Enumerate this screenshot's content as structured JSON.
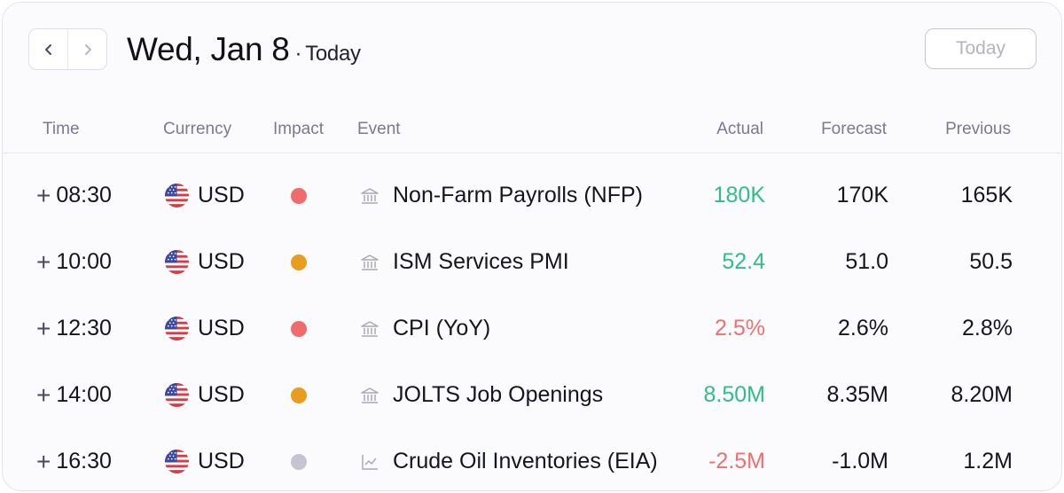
{
  "header": {
    "prev_icon": "chevron-left-icon",
    "next_icon": "chevron-right-icon",
    "date": "Wed, Jan 8",
    "separator": "·",
    "subtitle": "Today",
    "today_button": "Today"
  },
  "columns": {
    "time": "Time",
    "currency": "Currency",
    "impact": "Impact",
    "event": "Event",
    "actual": "Actual",
    "forecast": "Forecast",
    "previous": "Previous"
  },
  "colors": {
    "positive": "#2fbe85",
    "negative": "#ef7070",
    "impact_high": "#f06b6b",
    "impact_medium": "#e89d1e",
    "impact_low": "#c4c4d2"
  },
  "rows": [
    {
      "time": "08:30",
      "currency": "USD",
      "flag_icon": "us-flag-icon",
      "impact": "high",
      "event_icon": "bank-icon",
      "event": "Non-Farm Payrolls (NFP)",
      "actual": "180K",
      "actual_status": "positive",
      "forecast": "170K",
      "previous": "165K"
    },
    {
      "time": "10:00",
      "currency": "USD",
      "flag_icon": "us-flag-icon",
      "impact": "medium",
      "event_icon": "bank-icon",
      "event": "ISM Services PMI",
      "actual": "52.4",
      "actual_status": "positive",
      "forecast": "51.0",
      "previous": "50.5"
    },
    {
      "time": "12:30",
      "currency": "USD",
      "flag_icon": "us-flag-icon",
      "impact": "high",
      "event_icon": "bank-icon",
      "event": "CPI (YoY)",
      "actual": "2.5%",
      "actual_status": "negative",
      "forecast": "2.6%",
      "previous": "2.8%"
    },
    {
      "time": "14:00",
      "currency": "USD",
      "flag_icon": "us-flag-icon",
      "impact": "medium",
      "event_icon": "bank-icon",
      "event": "JOLTS Job Openings",
      "actual": "8.50M",
      "actual_status": "positive",
      "forecast": "8.35M",
      "previous": "8.20M"
    },
    {
      "time": "16:30",
      "currency": "USD",
      "flag_icon": "us-flag-icon",
      "impact": "low",
      "event_icon": "chart-line-icon",
      "event": "Crude Oil Inventories (EIA)",
      "actual": "-2.5M",
      "actual_status": "negative",
      "forecast": "-1.0M",
      "previous": "1.2M"
    }
  ]
}
